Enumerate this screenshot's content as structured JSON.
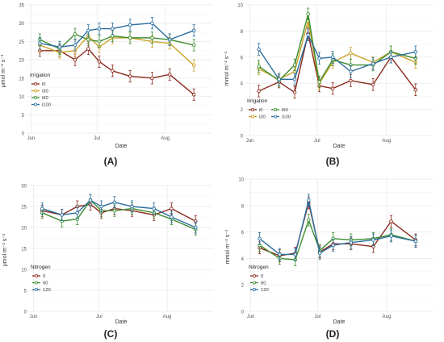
{
  "panel_labels": [
    "(A)",
    "(B)",
    "(C)",
    "(D)"
  ],
  "chart_data": [
    {
      "type": "line",
      "panel": "(A)",
      "ylabel": "μmol m⁻² s⁻¹",
      "xlabel": "Date",
      "x_ticks": [
        {
          "label": "Jun",
          "day": 0
        },
        {
          "label": "Jul",
          "day": 30
        },
        {
          "label": "Aug",
          "day": 61
        }
      ],
      "x_range": [
        -2,
        82
      ],
      "ylim": [
        0,
        35
      ],
      "y_ticks": [
        0,
        5,
        10,
        15,
        20,
        25,
        30,
        35
      ],
      "grid": true,
      "legend": {
        "title": "Irrigation",
        "placement": "left-middle",
        "columns": 1
      },
      "x": [
        4,
        13,
        20,
        26,
        31,
        37,
        45,
        55,
        63,
        74
      ],
      "series": [
        {
          "name": "i0",
          "color": "#8b2a1e",
          "values": [
            22.5,
            22.5,
            20.0,
            23.0,
            19.5,
            17.0,
            15.5,
            15.0,
            16.0,
            10.5
          ]
        },
        {
          "name": "i30",
          "color": "#c9a227",
          "values": [
            24.0,
            22.0,
            22.5,
            26.5,
            23.5,
            26.0,
            26.0,
            25.0,
            24.5,
            18.5
          ]
        },
        {
          "name": "i60",
          "color": "#3c8d2f",
          "values": [
            25.5,
            23.0,
            27.0,
            25.5,
            25.0,
            26.5,
            26.0,
            26.0,
            25.5,
            24.0
          ]
        },
        {
          "name": "i100",
          "color": "#2a6e9e",
          "values": [
            24.5,
            23.5,
            24.0,
            28.0,
            28.5,
            28.5,
            29.5,
            30.0,
            25.5,
            28.0
          ]
        }
      ]
    },
    {
      "type": "line",
      "panel": "(B)",
      "ylabel": "mmol m⁻² s⁻¹",
      "xlabel": "Date",
      "x_ticks": [
        {
          "label": "Jun",
          "day": 0
        },
        {
          "label": "Jul",
          "day": 30
        },
        {
          "label": "Aug",
          "day": 61
        }
      ],
      "x_range": [
        -2,
        82
      ],
      "ylim": [
        0,
        10
      ],
      "y_ticks": [
        0,
        2,
        4,
        6,
        8,
        10
      ],
      "grid": true,
      "legend": {
        "title": "Irrigation",
        "placement": "bottom-left",
        "columns": 2
      },
      "x": [
        4,
        13,
        20,
        26,
        31,
        37,
        45,
        55,
        63,
        74
      ],
      "series": [
        {
          "name": "i0",
          "color": "#8b2a1e",
          "values": [
            3.4,
            4.1,
            3.3,
            7.8,
            3.8,
            3.6,
            4.2,
            3.9,
            6.0,
            3.5
          ]
        },
        {
          "name": "i30",
          "color": "#c9a227",
          "values": [
            5.1,
            4.3,
            4.9,
            8.8,
            4.0,
            5.6,
            6.3,
            5.6,
            6.4,
            5.6
          ]
        },
        {
          "name": "i60",
          "color": "#3c8d2f",
          "values": [
            5.3,
            4.2,
            5.4,
            9.3,
            4.1,
            5.8,
            5.4,
            5.4,
            6.4,
            5.9
          ]
        },
        {
          "name": "i100",
          "color": "#2a6e9e",
          "values": [
            6.6,
            4.3,
            4.3,
            7.7,
            5.9,
            6.0,
            4.9,
            5.5,
            6.0,
            6.4
          ]
        }
      ]
    },
    {
      "type": "line",
      "panel": "(C)",
      "ylabel": "μmol m⁻² s⁻¹",
      "xlabel": "Date",
      "x_ticks": [
        {
          "label": "Jun",
          "day": 0
        },
        {
          "label": "Jul",
          "day": 30
        },
        {
          "label": "Aug",
          "day": 61
        }
      ],
      "x_range": [
        -2,
        82
      ],
      "ylim": [
        0,
        30
      ],
      "y_ticks": [
        0,
        5,
        10,
        15,
        20,
        25,
        30
      ],
      "grid": true,
      "legend": {
        "title": "Nitrogen",
        "placement": "bottom-left",
        "columns": 1
      },
      "x": [
        4,
        13,
        20,
        26,
        31,
        37,
        45,
        55,
        63,
        74
      ],
      "series": [
        {
          "name": "0",
          "color": "#8b2a1e",
          "values": [
            24.0,
            23.0,
            25.0,
            25.5,
            23.5,
            24.5,
            24.0,
            23.0,
            24.5,
            21.5
          ]
        },
        {
          "name": "60",
          "color": "#3c8d2f",
          "values": [
            23.5,
            21.5,
            22.0,
            26.5,
            24.0,
            24.0,
            24.5,
            23.5,
            22.0,
            19.5
          ]
        },
        {
          "name": "120",
          "color": "#2a6e9e",
          "values": [
            24.5,
            23.0,
            23.5,
            26.5,
            25.0,
            26.0,
            25.0,
            24.5,
            22.5,
            20.0
          ]
        }
      ]
    },
    {
      "type": "line",
      "panel": "(D)",
      "ylabel": "mmol m⁻² s⁻¹",
      "xlabel": "Date",
      "x_ticks": [
        {
          "label": "Jun",
          "day": 0
        },
        {
          "label": "Jul",
          "day": 30
        },
        {
          "label": "Aug",
          "day": 61
        }
      ],
      "x_range": [
        -2,
        82
      ],
      "ylim": [
        0,
        10
      ],
      "y_ticks": [
        0,
        2,
        4,
        6,
        8,
        10
      ],
      "grid": true,
      "legend": {
        "title": "Nitrogen",
        "placement": "bottom-left",
        "columns": 1
      },
      "x": [
        4,
        13,
        20,
        26,
        31,
        37,
        45,
        55,
        63,
        74
      ],
      "series": [
        {
          "name": "0",
          "color": "#8b2a1e",
          "values": [
            4.8,
            4.2,
            4.4,
            8.2,
            4.5,
            5.1,
            5.1,
            4.9,
            6.8,
            5.4
          ]
        },
        {
          "name": "60",
          "color": "#3c8d2f",
          "values": [
            5.0,
            4.0,
            3.9,
            6.9,
            4.6,
            5.5,
            5.4,
            5.5,
            5.8,
            5.3
          ]
        },
        {
          "name": "120",
          "color": "#2a6e9e",
          "values": [
            5.5,
            4.3,
            4.3,
            8.4,
            4.4,
            5.0,
            5.2,
            5.4,
            5.7,
            5.3
          ]
        }
      ]
    }
  ]
}
